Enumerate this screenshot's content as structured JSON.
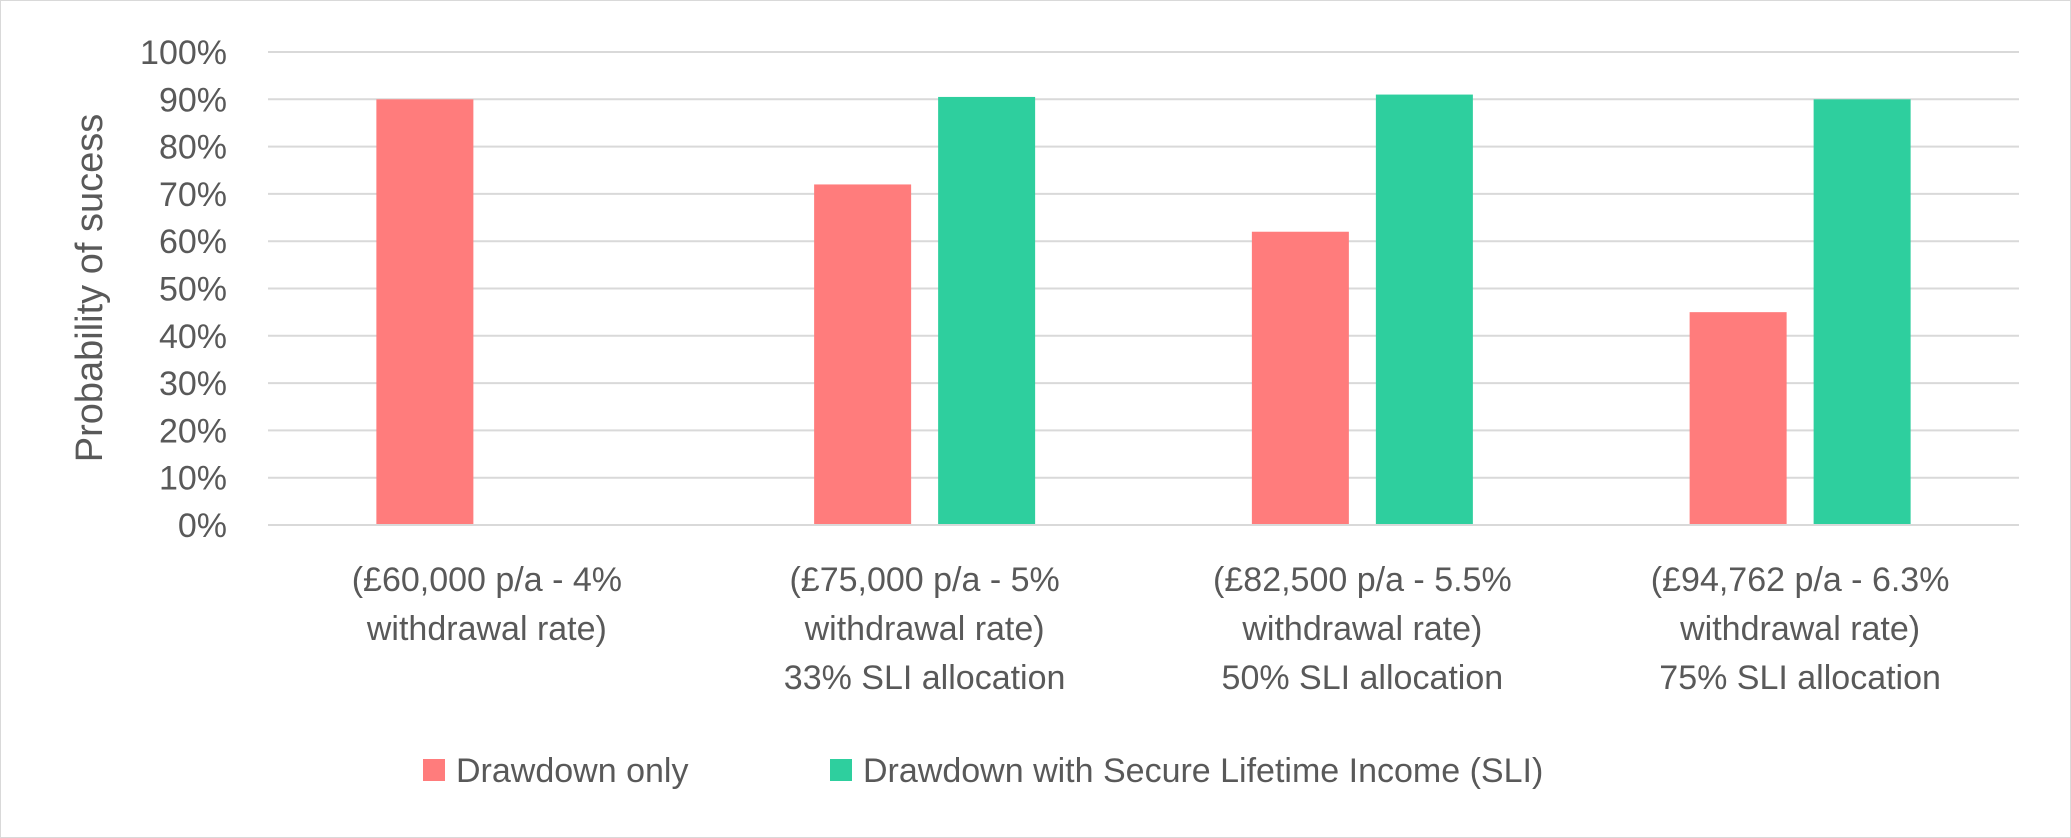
{
  "chart_data": {
    "type": "bar",
    "title": "",
    "xlabel": "",
    "ylabel": "Probability of sucess",
    "ylim": [
      0,
      100
    ],
    "yticks": [
      "0%",
      "10%",
      "20%",
      "30%",
      "40%",
      "50%",
      "60%",
      "70%",
      "80%",
      "90%",
      "100%"
    ],
    "grid": true,
    "legend_position": "bottom",
    "categories": [
      [
        "(£60,000 p/a - 4%",
        "withdrawal rate)"
      ],
      [
        "(£75,000 p/a - 5%",
        "withdrawal rate)",
        "33% SLI allocation"
      ],
      [
        "(£82,500 p/a - 5.5%",
        "withdrawal rate)",
        "50% SLI allocation"
      ],
      [
        "(£94,762 p/a - 6.3%",
        "withdrawal rate)",
        "75% SLI allocation"
      ]
    ],
    "series": [
      {
        "name": "Drawdown only",
        "color": "#ff7c7c",
        "values": [
          90,
          72,
          62,
          45
        ]
      },
      {
        "name": "Drawdown with Secure Lifetime Income (SLI)",
        "color": "#2ecf9e",
        "values": [
          null,
          90.5,
          91,
          90
        ]
      }
    ]
  }
}
